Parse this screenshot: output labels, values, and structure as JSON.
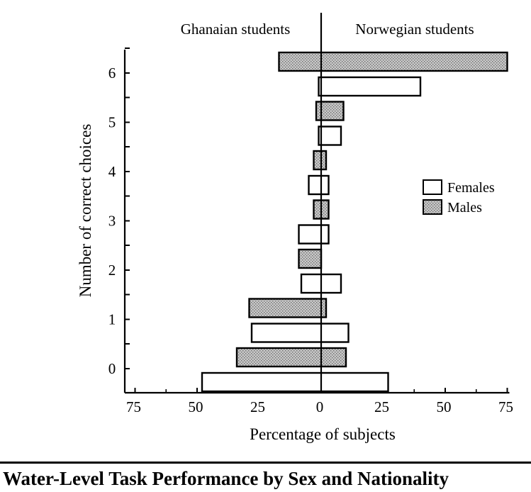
{
  "chart_data": {
    "type": "bar",
    "orientation": "horizontal-diverging",
    "title": "",
    "caption": "Water-Level Task Performance by Sex and Nationality",
    "xlabel": "Percentage of subjects",
    "ylabel": "Number of correct choices",
    "xlim": [
      -75,
      75
    ],
    "xticks": [
      -75,
      -50,
      -25,
      0,
      25,
      50,
      75
    ],
    "xtick_labels": [
      "75",
      "50",
      "25",
      "0",
      "25",
      "50",
      "75"
    ],
    "left_group_label": "Ghanaian students",
    "right_group_label": "Norwegian students",
    "categories": [
      "0",
      "1",
      "2",
      "3",
      "4",
      "5",
      "6"
    ],
    "series": [
      {
        "name": "Females",
        "color": "#ffffff",
        "pattern": "none",
        "ghanaian": [
          48,
          28,
          8,
          9,
          5,
          1,
          1
        ],
        "norwegian": [
          27,
          11,
          8,
          3,
          3,
          8,
          40
        ]
      },
      {
        "name": "Males",
        "color": "#b8b8b8",
        "pattern": "stipple",
        "ghanaian": [
          34,
          29,
          9,
          3,
          3,
          2,
          17
        ],
        "norwegian": [
          10,
          2,
          0,
          3,
          2,
          9,
          75
        ]
      }
    ],
    "legend": {
      "entries": [
        "Females",
        "Males"
      ],
      "position": "right"
    },
    "grid": false
  }
}
